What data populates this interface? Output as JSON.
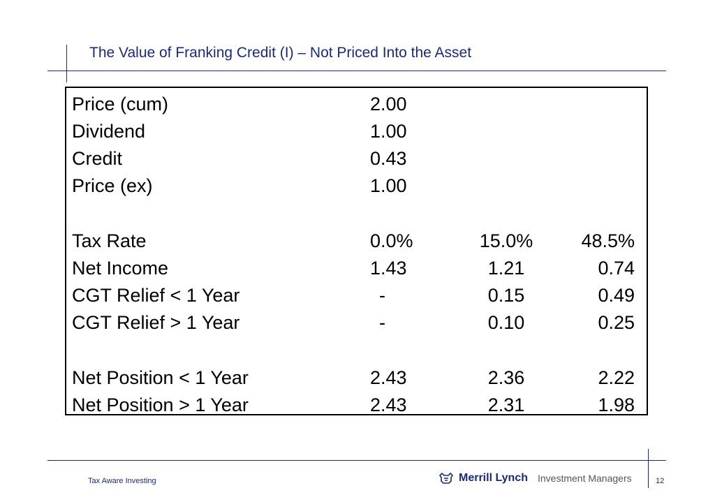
{
  "slide": {
    "title": "The Value of Franking Credit (I) – Not Priced Into the Asset"
  },
  "table": {
    "rows": [
      {
        "label": "Price (cum)",
        "v1": "2.00",
        "v2": "",
        "v3": ""
      },
      {
        "label": "Dividend",
        "v1": "1.00",
        "v2": "",
        "v3": ""
      },
      {
        "label": "Credit",
        "v1": "0.43",
        "v2": "",
        "v3": ""
      },
      {
        "label": "Price (ex)",
        "v1": "1.00",
        "v2": "",
        "v3": ""
      },
      {
        "label": "Tax Rate",
        "v1": "0.0%",
        "v2": "15.0%",
        "v3": "48.5%"
      },
      {
        "label": "Net Income",
        "v1": "1.43",
        "v2": "1.21",
        "v3": "0.74"
      },
      {
        "label": "CGT Relief < 1 Year",
        "v1": "  -",
        "v2": "0.15",
        "v3": "0.49"
      },
      {
        "label": "CGT Relief > 1 Year",
        "v1": "  -",
        "v2": "0.10",
        "v3": "0.25"
      },
      {
        "label": "Net Position < 1 Year",
        "v1": "2.43",
        "v2": "2.36",
        "v3": "2.22"
      },
      {
        "label": "Net Position > 1 Year",
        "v1": "2.43",
        "v2": "2.31",
        "v3": "1.98"
      }
    ]
  },
  "footer": {
    "left_text": "Tax Aware Investing",
    "brand_name": "Merrill Lynch",
    "brand_sub": "Investment Managers",
    "page_number": "12"
  },
  "colors": {
    "accent": "#1a2a78"
  }
}
